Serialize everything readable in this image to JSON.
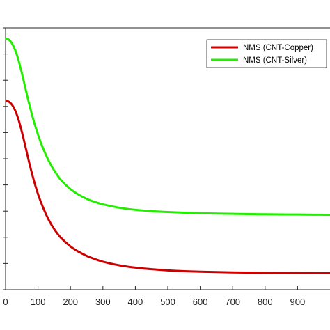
{
  "chart_data": {
    "type": "line",
    "title": "",
    "xlabel": "",
    "ylabel": "",
    "xlim": [
      0,
      1000
    ],
    "ylim": [
      0,
      1
    ],
    "grid": false,
    "legend_placement": "top-right",
    "xticks": [
      0,
      100,
      200,
      300,
      400,
      500,
      600,
      700,
      800,
      900
    ],
    "xtick_labels": [
      "0",
      "100",
      "200",
      "300",
      "400",
      "500",
      "600",
      "700",
      "800",
      "900"
    ],
    "series": [
      {
        "name": "NMS (CNT-Copper)",
        "color": "#cc0000",
        "x": [
          0,
          10,
          20,
          30,
          40,
          50,
          60,
          70,
          80,
          90,
          100,
          110,
          120,
          130,
          140,
          150,
          170,
          200,
          225,
          250,
          275,
          300,
          350,
          400,
          450,
          500,
          550,
          600,
          650,
          700,
          750,
          800,
          850,
          900,
          950,
          1000
        ],
        "y": [
          0.722,
          0.718,
          0.706,
          0.683,
          0.649,
          0.604,
          0.553,
          0.5,
          0.45,
          0.405,
          0.365,
          0.331,
          0.301,
          0.274,
          0.251,
          0.231,
          0.199,
          0.165,
          0.145,
          0.129,
          0.117,
          0.107,
          0.093,
          0.084,
          0.078,
          0.0735,
          0.0705,
          0.0685,
          0.067,
          0.0658,
          0.065,
          0.0643,
          0.0638,
          0.0634,
          0.0631,
          0.0628
        ]
      },
      {
        "name": "NMS (CNT-Silver)",
        "color": "#22ee00",
        "x": [
          0,
          10,
          20,
          30,
          40,
          50,
          60,
          70,
          80,
          90,
          100,
          110,
          120,
          130,
          140,
          150,
          170,
          200,
          225,
          250,
          275,
          300,
          350,
          400,
          450,
          500,
          550,
          600,
          650,
          700,
          750,
          800,
          850,
          900,
          950,
          1000
        ],
        "y": [
          0.96,
          0.955,
          0.94,
          0.914,
          0.876,
          0.828,
          0.776,
          0.723,
          0.675,
          0.631,
          0.592,
          0.557,
          0.527,
          0.5,
          0.476,
          0.455,
          0.42,
          0.384,
          0.363,
          0.347,
          0.335,
          0.326,
          0.313,
          0.305,
          0.3,
          0.2965,
          0.294,
          0.292,
          0.2905,
          0.2895,
          0.2885,
          0.2878,
          0.2872,
          0.2868,
          0.2864,
          0.286
        ]
      }
    ]
  }
}
